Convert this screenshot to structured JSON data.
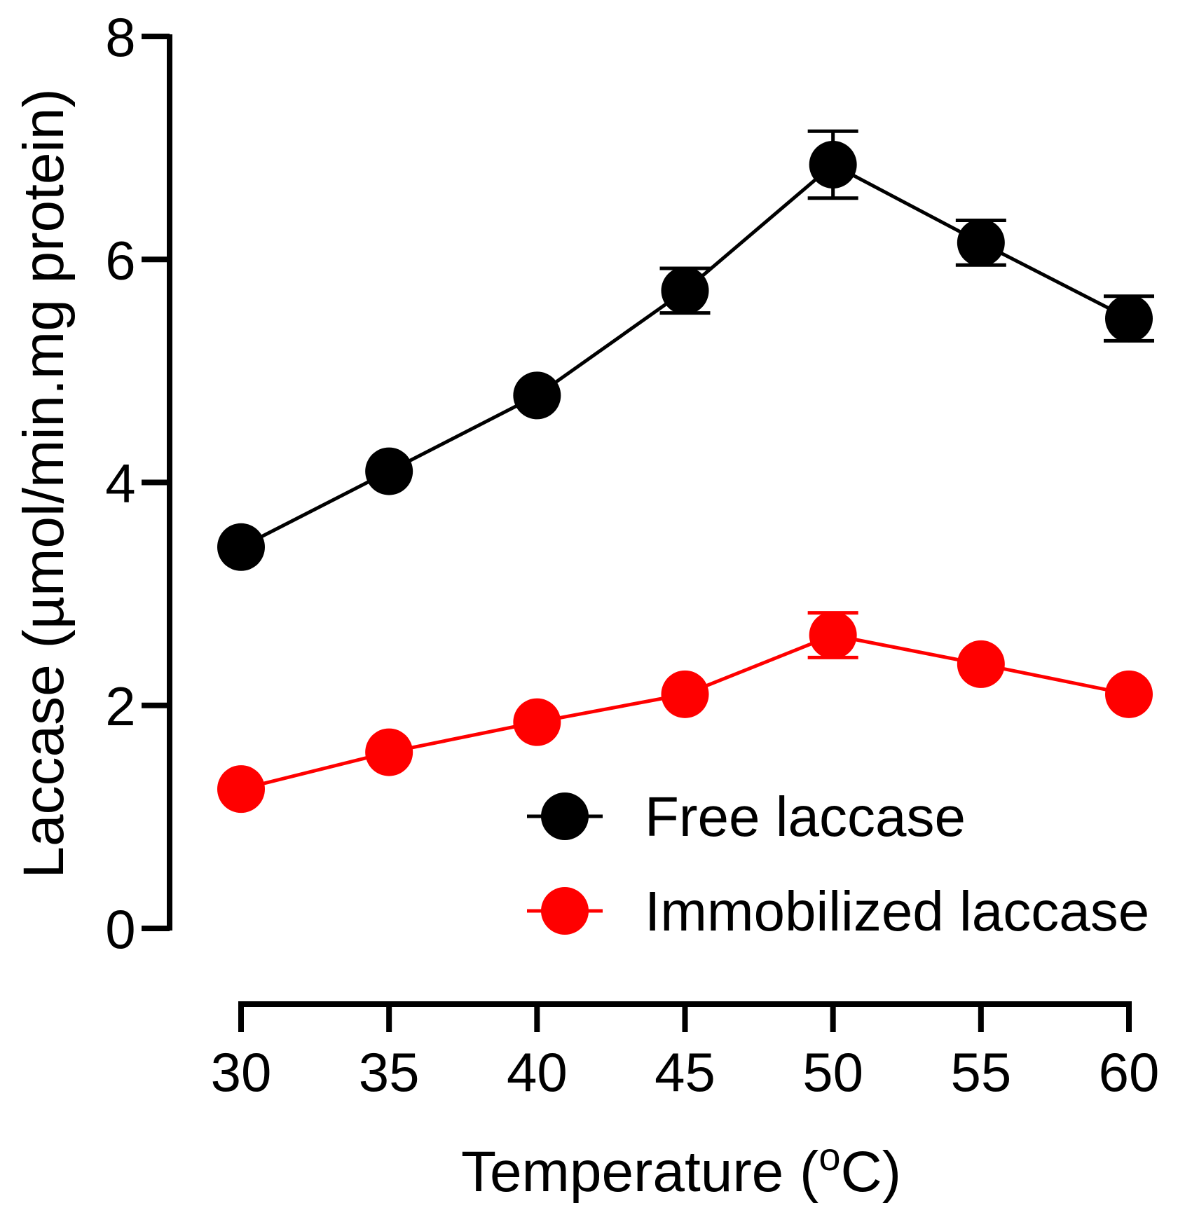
{
  "chart_data": {
    "type": "line",
    "title": "",
    "xlabel": "Temperature (",
    "xlabel_sup": "o",
    "xlabel_suffix": "C)",
    "ylabel": "Laccase (µmol/min.mg protein)",
    "x": [
      30,
      35,
      40,
      45,
      50,
      55,
      60
    ],
    "xticks": [
      "30",
      "35",
      "40",
      "45",
      "50",
      "55",
      "60"
    ],
    "xlim": [
      30,
      60
    ],
    "yticks": [
      "0",
      "2",
      "4",
      "6",
      "8"
    ],
    "ylim": [
      0,
      8
    ],
    "grid": false,
    "legend_position": "bottom-right",
    "series": [
      {
        "name": "Free laccase",
        "color": "#000000",
        "values": [
          3.42,
          4.1,
          4.78,
          5.72,
          6.85,
          6.15,
          5.47
        ],
        "errors": [
          0,
          0,
          0,
          0.2,
          0.3,
          0.2,
          0.2
        ]
      },
      {
        "name": "Immobilized laccase",
        "color": "#ff0000",
        "values": [
          1.25,
          1.58,
          1.85,
          2.1,
          2.63,
          2.37,
          2.1
        ],
        "errors": [
          0,
          0,
          0,
          0,
          0.2,
          0,
          0
        ]
      }
    ]
  }
}
